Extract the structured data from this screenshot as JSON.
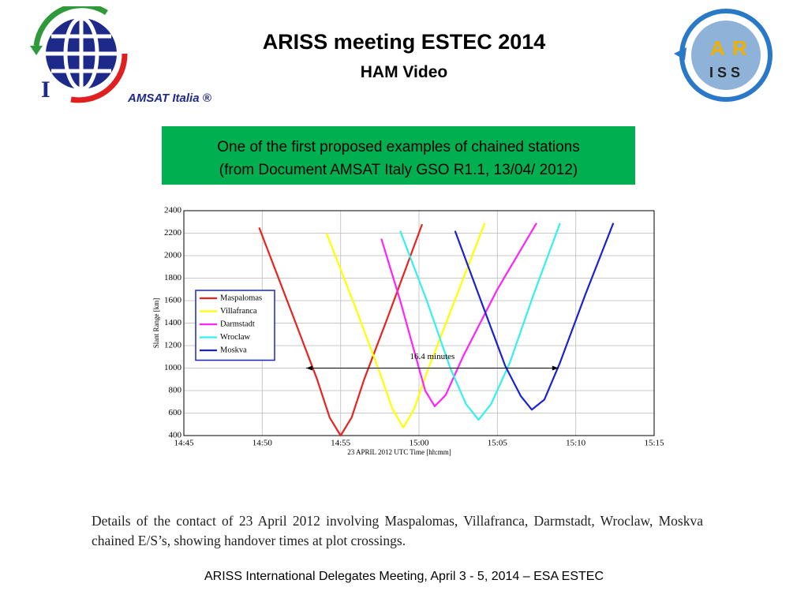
{
  "header": {
    "title": "ARISS meeting ESTEC 2014",
    "subtitle": "HAM Video",
    "logo_left_text": "AMSAT Italia ®",
    "logo_left_letter": "I",
    "logo_right_letters": [
      "A",
      "R",
      "I S S"
    ]
  },
  "callout": {
    "lines": [
      "One of the first proposed examples of chained stations",
      "(from Document AMSAT Italy GSO R1.1, 13/04/ 2012)"
    ]
  },
  "chart_data": {
    "type": "line",
    "xlabel": "23 APRIL 2012   UTC Time [hh:mm]",
    "ylabel": "Slant Range [km]",
    "xlim": [
      885,
      915
    ],
    "xticks": [
      {
        "value": 885,
        "label": "14:45"
      },
      {
        "value": 890,
        "label": "14:50"
      },
      {
        "value": 895,
        "label": "14:55"
      },
      {
        "value": 900,
        "label": "15:00"
      },
      {
        "value": 905,
        "label": "15:05"
      },
      {
        "value": 910,
        "label": "15:10"
      },
      {
        "value": 915,
        "label": "15:15"
      }
    ],
    "ylim": [
      400,
      2400
    ],
    "yticks": [
      400,
      600,
      800,
      1000,
      1200,
      1400,
      1600,
      1800,
      2000,
      2200,
      2400
    ],
    "grid": true,
    "legend": "left",
    "series": [
      {
        "name": "Maspalomas",
        "color": "#e8231f",
        "x": [
          889.8,
          892,
          893.5,
          894.3,
          895,
          895.7,
          896.5,
          898,
          900.2
        ],
        "values": [
          2250,
          1450,
          900,
          560,
          400,
          560,
          900,
          1450,
          2280
        ]
      },
      {
        "name": "Villafranca",
        "color": "#ffff00",
        "x": [
          894.1,
          896,
          897.5,
          898.3,
          899,
          899.7,
          900.5,
          902,
          904.2
        ],
        "values": [
          2200,
          1520,
          960,
          640,
          470,
          640,
          960,
          1500,
          2290
        ]
      },
      {
        "name": "Darmstadt",
        "color": "#ff22ff",
        "x": [
          897.6,
          898.8,
          899.8,
          900.4,
          901,
          901.7,
          902.8,
          905,
          907.5
        ],
        "values": [
          2150,
          1600,
          1100,
          800,
          660,
          760,
          1100,
          1700,
          2290
        ]
      },
      {
        "name": "Wroclaw",
        "color": "#33f0f0",
        "x": [
          898.8,
          900.5,
          902,
          903,
          903.8,
          904.6,
          905.8,
          907.3,
          909
        ],
        "values": [
          2220,
          1600,
          1000,
          680,
          540,
          680,
          1050,
          1650,
          2290
        ]
      },
      {
        "name": "Moskva",
        "color": "#1a22d0",
        "x": [
          902.3,
          904,
          905.5,
          906.5,
          907.2,
          908,
          909,
          910.6,
          912.4
        ],
        "values": [
          2220,
          1580,
          1020,
          750,
          630,
          720,
          1050,
          1650,
          2290
        ]
      }
    ],
    "annotation": {
      "text": "16.4 minutes",
      "x": [
        892.8,
        908.9
      ],
      "y": 1000
    }
  },
  "caption": "Details of the contact of 23 April 2012 involving Maspalomas, Villafranca, Darmstadt, Wroclaw, Moskva chained E/S’s, showing handover times at plot crossings.",
  "footer": "ARISS International Delegates Meeting, April 3 - 5, 2014 – ESA ESTEC"
}
